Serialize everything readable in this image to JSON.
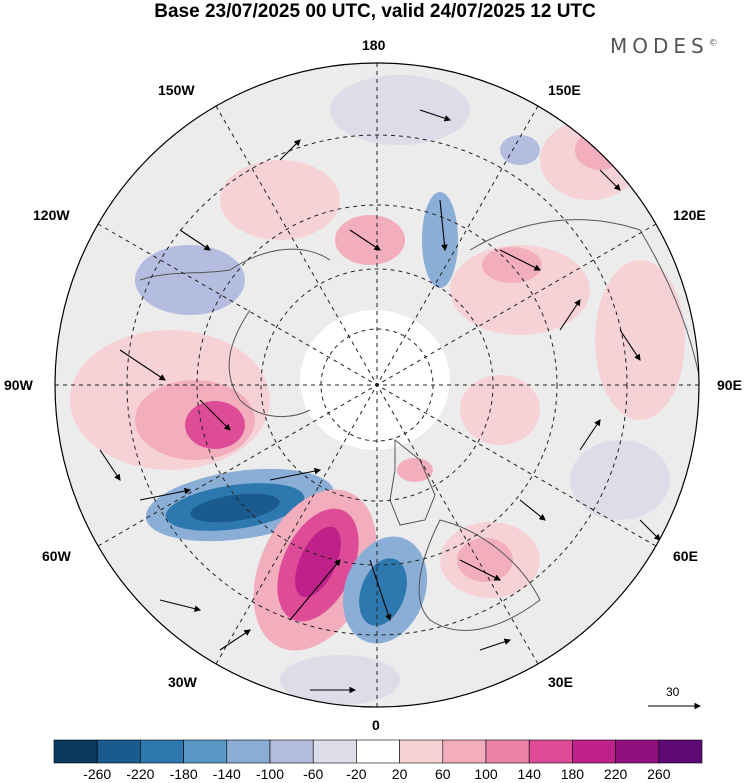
{
  "title": "Base 23/07/2025 00 UTC, valid 24/07/2025 12 UTC",
  "brand": "MODES",
  "brand_mark": "©",
  "longitude_labels": {
    "top": "180",
    "bottom": "0",
    "left": "90W",
    "right": "90E",
    "upper_left_1": "150W",
    "upper_left_2": "120W",
    "upper_right_1": "150E",
    "upper_right_2": "120E",
    "lower_left_1": "60W",
    "lower_left_2": "30W",
    "lower_right_1": "60E",
    "lower_right_2": "30E"
  },
  "reference_vector": {
    "label": "30"
  },
  "colorbar": {
    "colors": [
      "#0b3a5e",
      "#1a5a8c",
      "#2e78b0",
      "#5997c6",
      "#8aaed6",
      "#b4bddf",
      "#dddde9",
      "#ffffff",
      "#f6d2d6",
      "#f2aebc",
      "#ec83a8",
      "#de4c98",
      "#c0208a",
      "#901080",
      "#5e0a76"
    ],
    "labels": [
      "-260",
      "-220",
      "-180",
      "-140",
      "-100",
      "-60",
      "-20",
      "20",
      "60",
      "100",
      "140",
      "180",
      "220",
      "260"
    ]
  }
}
